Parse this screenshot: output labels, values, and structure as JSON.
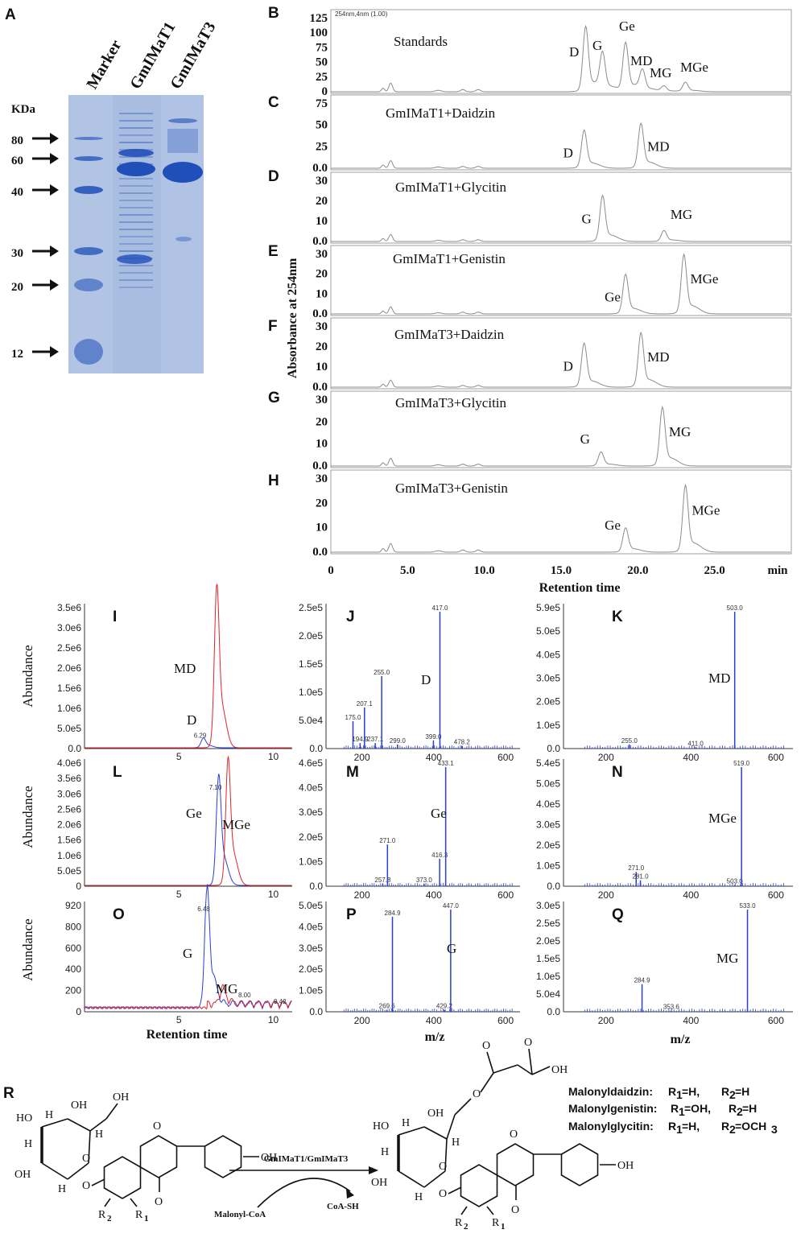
{
  "gel": {
    "letter": "A",
    "unit": "KDa",
    "lanes": [
      "Marker",
      "GmIMaT1",
      "GmIMaT3"
    ],
    "markers": [
      "80",
      "60",
      "40",
      "30",
      "20",
      "12"
    ],
    "colors": {
      "gel_bg": "#a9bde0",
      "band": "#1f4fb8"
    }
  },
  "hplc": {
    "ylabel": "Absorbance at 254nm",
    "xlabel": "Retention time",
    "unit": "min",
    "x_ticks": [
      "0",
      "5.0",
      "10.0",
      "15.0",
      "20.0",
      "25.0"
    ],
    "header_small": "254nm,4nm (1.00)",
    "panels": [
      {
        "letter": "B",
        "title": "Standards",
        "y_ticks": [
          "125",
          "100",
          "75",
          "50",
          "25",
          "0"
        ],
        "peaks": [
          {
            "label": "D",
            "rt": 16.6,
            "h": 0.83
          },
          {
            "label": "G",
            "rt": 17.7,
            "h": 0.46
          },
          {
            "label": "Ge",
            "rt": 19.2,
            "h": 0.62
          },
          {
            "label": "MD",
            "rt": 20.3,
            "h": 0.25
          },
          {
            "label": "MG",
            "rt": 21.7,
            "h": 0.07
          },
          {
            "label": "MGe",
            "rt": 23.1,
            "h": 0.12
          }
        ]
      },
      {
        "letter": "C",
        "title": "GmIMaT1+Daidzin",
        "y_ticks": [
          "75",
          "50",
          "25",
          "0.0"
        ],
        "peaks": [
          {
            "label": "D",
            "rt": 16.5,
            "h": 0.55
          },
          {
            "label": "MD",
            "rt": 20.2,
            "h": 0.65
          }
        ]
      },
      {
        "letter": "D",
        "title": "GmIMaT1+Glycitin",
        "y_ticks": [
          "30",
          "20",
          "10",
          "0.0"
        ],
        "peaks": [
          {
            "label": "G",
            "rt": 17.7,
            "h": 0.71
          },
          {
            "label": "MG",
            "rt": 21.7,
            "h": 0.17
          }
        ]
      },
      {
        "letter": "E",
        "title": "GmIMaT1+Genistin",
        "y_ticks": [
          "30",
          "20",
          "10",
          "0.0"
        ],
        "peaks": [
          {
            "label": "Ge",
            "rt": 19.2,
            "h": 0.62
          },
          {
            "label": "MGe",
            "rt": 23.0,
            "h": 0.93
          }
        ]
      },
      {
        "letter": "F",
        "title": "GmIMaT3+Daidzin",
        "y_ticks": [
          "30",
          "20",
          "10",
          "0.0"
        ],
        "peaks": [
          {
            "label": "D",
            "rt": 16.5,
            "h": 0.68
          },
          {
            "label": "MD",
            "rt": 20.2,
            "h": 0.84
          }
        ]
      },
      {
        "letter": "G",
        "title": "GmIMaT3+Glycitin",
        "y_ticks": [
          "30",
          "20",
          "10",
          "0.0"
        ],
        "peaks": [
          {
            "label": "G",
            "rt": 17.6,
            "h": 0.2
          },
          {
            "label": "MG",
            "rt": 21.6,
            "h": 0.83
          }
        ]
      },
      {
        "letter": "H",
        "title": "GmIMaT3+Genistin",
        "y_ticks": [
          "30",
          "20",
          "10",
          "0.0"
        ],
        "peaks": [
          {
            "label": "Ge",
            "rt": 19.2,
            "h": 0.31
          },
          {
            "label": "MGe",
            "rt": 23.1,
            "h": 0.85
          }
        ]
      }
    ]
  },
  "lcms": {
    "ylabel": "Abundance",
    "xlabel_rt": "Retention time",
    "xlabel_mz": "m/z",
    "colors": {
      "blue": "#2a3fd6",
      "red": "#e0242a"
    },
    "chrom": [
      {
        "letter": "I",
        "y_ticks": [
          "3.5e6",
          "3.0e6",
          "2.5e6",
          "2.0e6",
          "1.5e6",
          "1.0e6",
          "5.0e5",
          "0.0"
        ],
        "x_ticks": [
          "5",
          "10"
        ],
        "peaks": [
          {
            "label": "D",
            "rt": 6.29,
            "color": "blue",
            "h": 0.06,
            "rt_label": "6.29"
          },
          {
            "label": "MD",
            "rt": 7.0,
            "color": "red",
            "h": 1.0
          }
        ]
      },
      {
        "letter": "L",
        "y_ticks": [
          "4.0e6",
          "3.5e6",
          "3.0e6",
          "2.5e6",
          "2.0e6",
          "1.5e6",
          "1.0e6",
          "5.0e5",
          "0"
        ],
        "x_ticks": [
          "5",
          "10"
        ],
        "peaks": [
          {
            "label": "Ge",
            "rt": 7.1,
            "color": "blue",
            "h": 0.78,
            "rt_label": "7.10"
          },
          {
            "label": "MGe",
            "rt": 7.6,
            "color": "red",
            "h": 0.9
          }
        ]
      },
      {
        "letter": "O",
        "y_ticks": [
          "920",
          "800",
          "600",
          "400",
          "200",
          "0"
        ],
        "x_ticks": [
          "5",
          "10"
        ],
        "peaks": [
          {
            "label": "G",
            "rt": 6.48,
            "color": "blue",
            "h": 0.97,
            "rt_label": "6.48"
          },
          {
            "label": "MG",
            "rt": 7.3,
            "color": "red",
            "h": 0.14
          }
        ],
        "minor_labels": [
          "8.00",
          "9.42"
        ]
      }
    ],
    "spectra": [
      {
        "letter": "J",
        "label": "D",
        "y_ticks": [
          "2.5e5",
          "2.0e5",
          "1.5e5",
          "1.0e5",
          "5.0e4",
          "0.0"
        ],
        "x_ticks": [
          "200",
          "400",
          "600"
        ],
        "peaks": [
          {
            "mz": 175.0,
            "h": 0.2
          },
          {
            "mz": 194.9,
            "h": 0.04
          },
          {
            "mz": 207.1,
            "h": 0.3
          },
          {
            "mz": 237.1,
            "h": 0.04
          },
          {
            "mz": 255.0,
            "h": 0.53
          },
          {
            "mz": 299.0,
            "h": 0.03
          },
          {
            "mz": 399.0,
            "h": 0.06
          },
          {
            "mz": 417.0,
            "h": 1.0
          },
          {
            "mz": 478.2,
            "h": 0.02
          }
        ]
      },
      {
        "letter": "K",
        "label": "MD",
        "y_ticks": [
          "5.9e5",
          "5.0e5",
          "4.0e5",
          "3.0e5",
          "2.0e5",
          "1.0e5",
          "0.0"
        ],
        "x_ticks": [
          "200",
          "400",
          "600"
        ],
        "peaks": [
          {
            "mz": 255.0,
            "h": 0.03
          },
          {
            "mz": 411.0,
            "h": 0.01
          },
          {
            "mz": 503.0,
            "h": 1.0
          }
        ]
      },
      {
        "letter": "M",
        "label": "Ge",
        "y_ticks": [
          "4.6e5",
          "4.0e5",
          "3.0e5",
          "2.0e5",
          "1.0e5",
          "0.0"
        ],
        "x_ticks": [
          "200",
          "400",
          "600"
        ],
        "peaks": [
          {
            "mz": 257.8,
            "h": 0.02
          },
          {
            "mz": 271.0,
            "h": 0.35
          },
          {
            "mz": 373.0,
            "h": 0.02
          },
          {
            "mz": 416.3,
            "h": 0.23
          },
          {
            "mz": 433.1,
            "h": 1.0
          }
        ]
      },
      {
        "letter": "N",
        "label": "MGe",
        "y_ticks": [
          "5.4e5",
          "5.0e5",
          "4.0e5",
          "3.0e5",
          "2.0e5",
          "1.0e5",
          "0.0"
        ],
        "x_ticks": [
          "200",
          "400",
          "600"
        ],
        "peaks": [
          {
            "mz": 271.0,
            "h": 0.12
          },
          {
            "mz": 281.0,
            "h": 0.05
          },
          {
            "mz": 503.0,
            "h": 0.01
          },
          {
            "mz": 519.0,
            "h": 1.0
          }
        ]
      },
      {
        "letter": "P",
        "label": "G",
        "y_ticks": [
          "5.0e5",
          "4.0e5",
          "3.0e5",
          "2.0e5",
          "1.0e5",
          "0.0"
        ],
        "x_ticks": [
          "200",
          "400",
          "600"
        ],
        "peaks": [
          {
            "mz": 269.6,
            "h": 0.02
          },
          {
            "mz": 284.9,
            "h": 0.93
          },
          {
            "mz": 429.2,
            "h": 0.02
          },
          {
            "mz": 447.0,
            "h": 1.0
          }
        ]
      },
      {
        "letter": "Q",
        "label": "MG",
        "y_ticks": [
          "3.0e5",
          "2.5e5",
          "2.0e5",
          "1.5e5",
          "1.0e5",
          "5.0e4",
          "0.0"
        ],
        "x_ticks": [
          "200",
          "400",
          "600"
        ],
        "peaks": [
          {
            "mz": 284.9,
            "h": 0.27
          },
          {
            "mz": 353.6,
            "h": 0.01
          },
          {
            "mz": 533.0,
            "h": 1.0
          }
        ]
      }
    ]
  },
  "reaction": {
    "letter": "R",
    "enzyme": "GmIMaT1/GmIMaT3",
    "substrate": "Malonyl-CoA",
    "product": "CoA-SH",
    "atoms": {
      "H": "H",
      "OH": "OH",
      "HO": "HO",
      "O": "O",
      "R1": "R",
      "R2": "R",
      "sub1": "1",
      "sub2": "2"
    },
    "legend": [
      {
        "name": "Malonyldaidzin:",
        "r1": "R",
        "r1_sub": "1",
        "r1_val": "=H,",
        "r2": "R",
        "r2_sub": "2",
        "r2_val": "=H"
      },
      {
        "name": "Malonylgenistin:",
        "r1": "R",
        "r1_sub": "1",
        "r1_val": "=OH,",
        "r2": "R",
        "r2_sub": "2",
        "r2_val": "=H"
      },
      {
        "name": "Malonylglycitin:",
        "r1": "R",
        "r1_sub": "1",
        "r1_val": "=H,",
        "r2": "R",
        "r2_sub": "2",
        "r2_val": "=OCH",
        "r2_val_sub": "3"
      }
    ]
  },
  "chart_data": [
    {
      "type": "other",
      "panel": "A",
      "lanes": [
        "Marker",
        "GmIMaT1",
        "GmIMaT3"
      ],
      "marker_kda": [
        80,
        60,
        40,
        30,
        20,
        12
      ],
      "ylabel": "KDa"
    },
    {
      "type": "line",
      "panels": [
        "B",
        "C",
        "D",
        "E",
        "F",
        "G",
        "H"
      ],
      "xlabel": "Retention time",
      "xunit": "min",
      "xlim": [
        0,
        30
      ],
      "ylabel": "Absorbance at 254nm",
      "series": [
        {
          "name": "Standards",
          "peaks_rt_min": {
            "D": 16.6,
            "G": 17.7,
            "Ge": 19.2,
            "MD": 20.3,
            "MG": 21.7,
            "MGe": 23.1
          }
        },
        {
          "name": "GmIMaT1+Daidzin",
          "peaks_rt_min": {
            "D": 16.5,
            "MD": 20.2
          }
        },
        {
          "name": "GmIMaT1+Glycitin",
          "peaks_rt_min": {
            "G": 17.7,
            "MG": 21.7
          }
        },
        {
          "name": "GmIMaT1+Genistin",
          "peaks_rt_min": {
            "Ge": 19.2,
            "MGe": 23.0
          }
        },
        {
          "name": "GmIMaT3+Daidzin",
          "peaks_rt_min": {
            "D": 16.5,
            "MD": 20.2
          }
        },
        {
          "name": "GmIMaT3+Glycitin",
          "peaks_rt_min": {
            "G": 17.6,
            "MG": 21.6
          }
        },
        {
          "name": "GmIMaT3+Genistin",
          "peaks_rt_min": {
            "Ge": 19.2,
            "MGe": 23.1
          }
        }
      ]
    },
    {
      "type": "line",
      "panels": [
        "I",
        "L",
        "O"
      ],
      "xlabel": "Retention time",
      "ylabel": "Abundance",
      "xlim": [
        0,
        11
      ],
      "peaks": {
        "I": {
          "D": 6.29,
          "MD": 7.0
        },
        "L": {
          "Ge": 7.1,
          "MGe": 7.6
        },
        "O": {
          "G": 6.48,
          "MG": 7.3
        }
      }
    },
    {
      "type": "bar",
      "panels": [
        "J",
        "K",
        "M",
        "N",
        "P",
        "Q"
      ],
      "xlabel": "m/z",
      "ylabel": "Abundance",
      "xlim": [
        100,
        640
      ],
      "base_peaks": {
        "J": 417.0,
        "K": 503.0,
        "M": 433.1,
        "N": 519.0,
        "P": 447.0,
        "Q": 533.0
      }
    }
  ]
}
